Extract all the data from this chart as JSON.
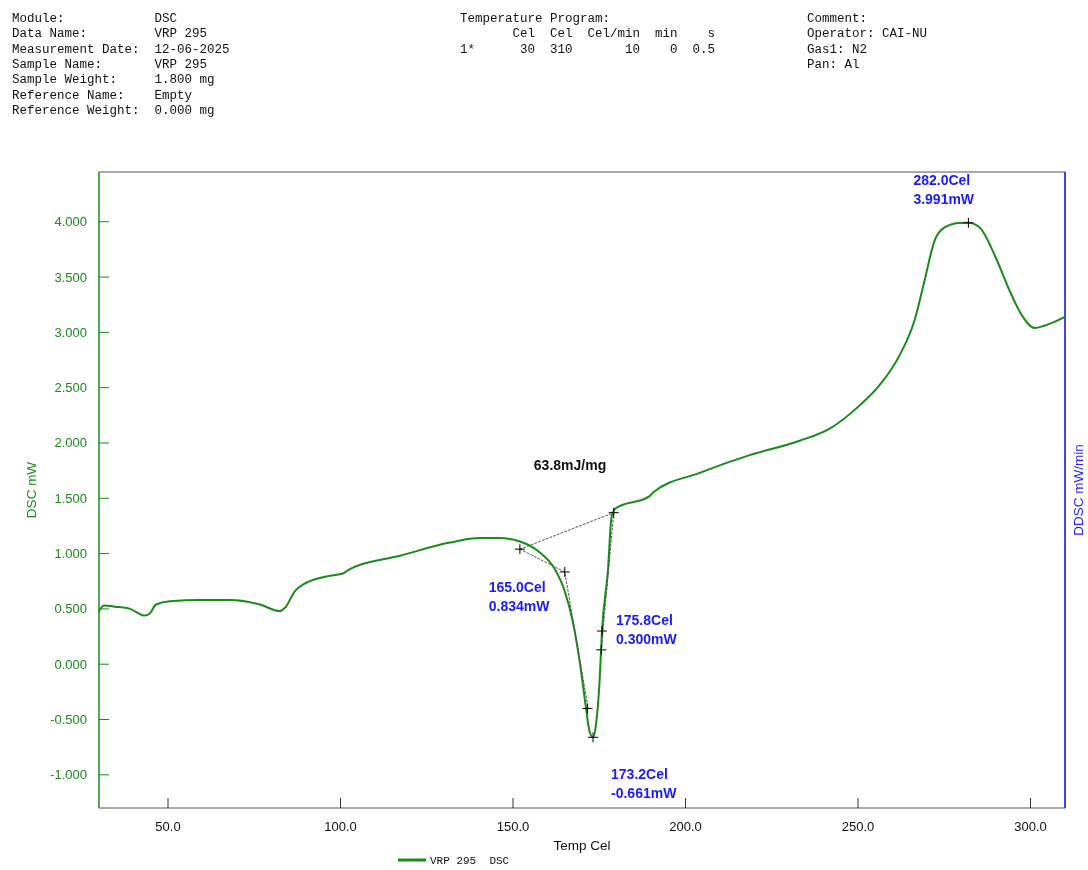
{
  "chart_data": {
    "type": "line",
    "xlabel": "Temp Cel",
    "ylabel": "DSC mW",
    "y2label": "DDSC mW/min",
    "xlim": [
      30,
      310
    ],
    "ylim": [
      -1.3,
      4.45
    ],
    "xticks": [
      {
        "value": 50,
        "label": "50.0"
      },
      {
        "value": 100,
        "label": "100.0"
      },
      {
        "value": 150,
        "label": "150.0"
      },
      {
        "value": 200,
        "label": "200.0"
      },
      {
        "value": 250,
        "label": "250.0"
      },
      {
        "value": 300,
        "label": "300.0"
      }
    ],
    "yticks": [
      {
        "value": -1,
        "label": "-1.000"
      },
      {
        "value": -0.5,
        "label": "-0.500"
      },
      {
        "value": 0,
        "label": "0.000"
      },
      {
        "value": 0.5,
        "label": "0.500"
      },
      {
        "value": 1,
        "label": "1.000"
      },
      {
        "value": 1.5,
        "label": "1.500"
      },
      {
        "value": 2,
        "label": "2.000"
      },
      {
        "value": 2.5,
        "label": "2.500"
      },
      {
        "value": 3,
        "label": "3.000"
      },
      {
        "value": 3.5,
        "label": "3.500"
      },
      {
        "value": 4,
        "label": "4.000"
      }
    ],
    "grid": false,
    "legend": "bottom",
    "series": [
      {
        "name": "VRP 295  DSC",
        "color": "#1a8a1a",
        "marker": "none",
        "x": [
          30,
          31.4,
          34.6,
          39,
          43.3,
          44.8,
          46.5,
          50.6,
          59.3,
          68,
          76.6,
          82.4,
          83.9,
          86.8,
          89.7,
          96.9,
          100.7,
          102.7,
          117.2,
          131.7,
          140.4,
          146.2,
          152,
          157.8,
          162.1,
          165,
          167.3,
          169.3,
          171.1,
          172.2,
          173.2,
          174,
          175.1,
          175.8,
          177.5,
          178.6,
          179.8,
          189.6,
          190.5,
          204.1,
          218.6,
          233.1,
          241.8,
          250.5,
          256.2,
          262,
          266.4,
          269.3,
          272.2,
          275.1,
          279.4,
          282,
          285.2,
          289.6,
          293.9,
          297.4,
          301.2,
          304,
          310
        ],
        "values": [
          0.48,
          0.53,
          0.52,
          0.5,
          0.44,
          0.46,
          0.54,
          0.57,
          0.58,
          0.58,
          0.54,
          0.48,
          0.51,
          0.66,
          0.73,
          0.8,
          0.82,
          0.86,
          0.98,
          1.1,
          1.14,
          1.14,
          1.11,
          1.01,
          0.86,
          0.66,
          0.39,
          0.03,
          -0.38,
          -0.61,
          -0.661,
          -0.56,
          -0.15,
          0.3,
          0.84,
          1.34,
          1.41,
          1.52,
          1.55,
          1.73,
          1.89,
          2.02,
          2.13,
          2.34,
          2.52,
          2.79,
          3.11,
          3.47,
          3.83,
          3.95,
          3.99,
          3.991,
          3.95,
          3.7,
          3.38,
          3.16,
          3.04,
          3.06,
          3.14
        ]
      },
      {
        "type": "line",
        "color": "#555555",
        "line_style": "dotted",
        "marker": "none",
        "x": [
          152,
          179.2
        ],
        "values": [
          1.04,
          1.37
        ]
      },
      {
        "type": "line",
        "color": "#555555",
        "line_style": "dotted",
        "marker": "none",
        "x": [
          152,
          165,
          171.8
        ],
        "values": [
          1.04,
          0.834,
          -0.4
        ]
      },
      {
        "type": "line",
        "color": "#555555",
        "line_style": "dotted",
        "marker": "none",
        "x": [
          175.6,
          179.2
        ],
        "values": [
          0.13,
          1.37
        ]
      },
      {
        "type": "scatter",
        "color": "#000000",
        "marker": "cross",
        "x": [
          152,
          165,
          171.6,
          173.2,
          175.6,
          175.8,
          179.2,
          282
        ],
        "values": [
          1.04,
          0.834,
          -0.4,
          -0.661,
          0.13,
          0.3,
          1.37,
          3.991
        ]
      }
    ],
    "annotations": [
      {
        "text": "165.0Cel\n0.834mW",
        "x": 165,
        "y": 0.834
      },
      {
        "text": "173.2Cel\n-0.661mW",
        "x": 173.2,
        "y": -0.661
      },
      {
        "text": "175.8Cel\n0.300mW",
        "x": 175.8,
        "y": 0.3
      },
      {
        "text": "282.0Cel\n3.991mW",
        "x": 282,
        "y": 3.991
      },
      "Module:            DSC",
      "Data Name:         VRP 295",
      "Measurement Date:  12-06-2025",
      "Sample Name:       VRP 295",
      "Sample Weight:     1.800 mg",
      "Reference Name:    Empty",
      "Reference Weight:  0.000 mg",
      "Temperature Program:",
      "       Cel  Cel  Cel/min  min    s",
      "1*      30  310       10    0  0.5",
      "Comment:",
      "Operator: CAI-NU",
      "Gas1: N2",
      "Pan: Al",
      "63.8mJ/mg"
    ]
  }
}
